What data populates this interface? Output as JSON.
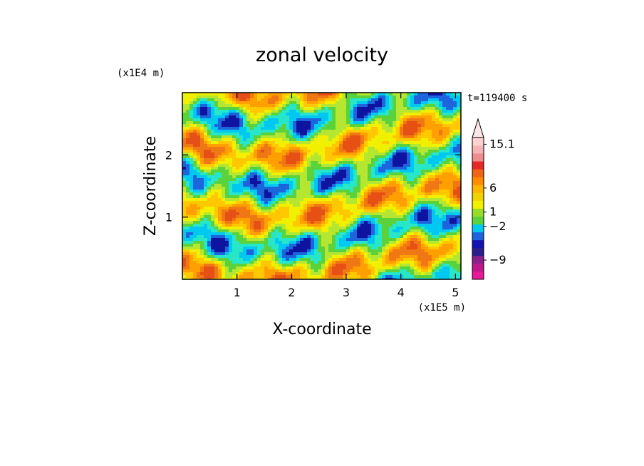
{
  "chart_data": {
    "type": "heatmap",
    "title": "zonal velocity",
    "xlabel": "X-coordinate",
    "ylabel": "Z-coordinate",
    "x_scale_note": "(x1E5 m)",
    "y_scale_note": "(x1E4 m)",
    "time_label": "t=119400 s",
    "xlim": [
      0,
      5.1
    ],
    "ylim": [
      0,
      3.0
    ],
    "x_ticks": [
      {
        "value": 1,
        "label": "1"
      },
      {
        "value": 2,
        "label": "2"
      },
      {
        "value": 3,
        "label": "3"
      },
      {
        "value": 4,
        "label": "4"
      },
      {
        "value": 5,
        "label": "5"
      }
    ],
    "y_ticks": [
      {
        "value": 1,
        "label": "1"
      },
      {
        "value": 2,
        "label": "2"
      }
    ],
    "colorbar": {
      "labels": [
        {
          "value": 15.1,
          "label": "15.1"
        },
        {
          "value": 6,
          "label": "6"
        },
        {
          "value": 1,
          "label": "1"
        },
        {
          "value": -2,
          "label": "−2"
        },
        {
          "value": -9,
          "label": "−9"
        }
      ],
      "colors": [
        "#e8189a",
        "#c0188c",
        "#8c1f8c",
        "#2a1f8c",
        "#1414b4",
        "#1e64dc",
        "#00c8f0",
        "#5ad23c",
        "#96dc28",
        "#f0f000",
        "#f0d200",
        "#ffb400",
        "#ff8c00",
        "#f06414",
        "#e62828",
        "#f08c8c",
        "#f5b4b4",
        "#ffd2d2"
      ],
      "extend_top": true
    },
    "field_palette": [
      "#0f14a0",
      "#1e64dc",
      "#00c8f0",
      "#28e6c8",
      "#5ad23c",
      "#b4e632",
      "#f0f000",
      "#ffc800",
      "#ffa000",
      "#f07814",
      "#e65014"
    ]
  }
}
